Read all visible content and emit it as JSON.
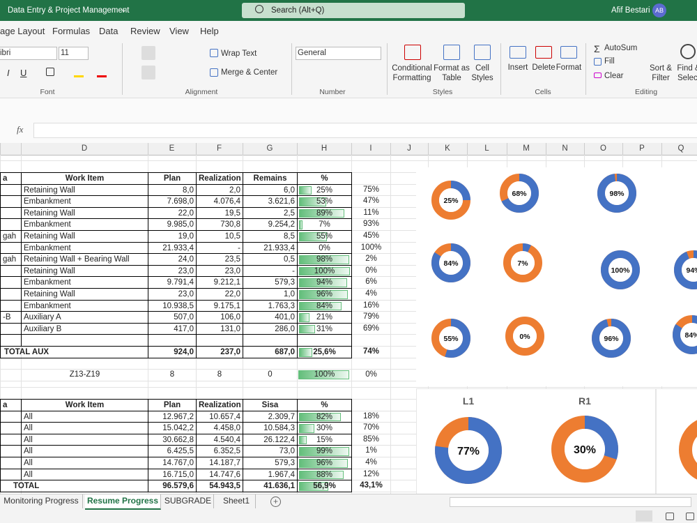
{
  "title_bar": {
    "doc_title": "Data Entry & Project Management",
    "search": "Search (Alt+Q)",
    "user": "Afif Bestari",
    "initials": "AB"
  },
  "menu_tabs": [
    "age Layout",
    "Formulas",
    "Data",
    "Review",
    "View",
    "Help"
  ],
  "ribbon": {
    "font_name": "ibri",
    "font_size": "11",
    "italic": "I",
    "underline": "U",
    "wrap_text": "Wrap Text",
    "merge_center": "Merge & Center",
    "number_format": "General",
    "conditional_formatting": [
      "Conditional",
      "Formatting"
    ],
    "format_as_table": [
      "Format as",
      "Table"
    ],
    "cell_styles": [
      "Cell",
      "Styles"
    ],
    "insert": "Insert",
    "delete": "Delete",
    "format": "Format",
    "autosum": "AutoSum",
    "fill": "Fill",
    "clear": "Clear",
    "sort_filter": [
      "Sort &",
      "Filter"
    ],
    "find_select": [
      "Find &",
      "Select"
    ],
    "groups": [
      "Font",
      "Alignment",
      "Number",
      "Styles",
      "Cells",
      "Editing"
    ]
  },
  "formula_bar": {
    "fx": "fx"
  },
  "columns": [
    "D",
    "E",
    "F",
    "G",
    "H",
    "I",
    "J",
    "K",
    "L",
    "M",
    "N",
    "O",
    "P",
    "Q"
  ],
  "table1": {
    "header": [
      "a",
      "Work Item",
      "Plan",
      "Realization",
      "Remains",
      "%"
    ],
    "rows": [
      [
        null,
        "Retaining Wall",
        "8,0",
        "2,0",
        "6,0",
        {
          "value": 25,
          "label": "25%"
        },
        "75%"
      ],
      [
        null,
        "Embankment",
        "7.698,0",
        "4.076,4",
        "3.621,6",
        {
          "value": 53,
          "label": "53%"
        },
        "47%"
      ],
      [
        null,
        "Retaining Wall",
        "22,0",
        "19,5",
        "2,5",
        {
          "value": 89,
          "label": "89%"
        },
        "11%"
      ],
      [
        null,
        "Embankment",
        "9.985,0",
        "730,8",
        "9.254,2",
        {
          "value": 7,
          "label": "7%"
        },
        "93%"
      ],
      [
        "gah",
        "Retaining Wall",
        "19,0",
        "10,5",
        "8,5",
        {
          "value": 55,
          "label": "55%"
        },
        "45%"
      ],
      [
        null,
        "Embankment",
        "21.933,4",
        "-",
        "21.933,4",
        {
          "value": 0,
          "label": "0%"
        },
        "100%"
      ],
      [
        "gah",
        "Retaining Wall + Bearing Wall",
        "24,0",
        "23,5",
        "0,5",
        {
          "value": 98,
          "label": "98%"
        },
        "2%"
      ],
      [
        null,
        "Retaining Wall",
        "23,0",
        "23,0",
        "-",
        {
          "value": 100,
          "label": "100%"
        },
        "0%"
      ],
      [
        null,
        "Embankment",
        "9.791,4",
        "9.212,1",
        "579,3",
        {
          "value": 94,
          "label": "94%"
        },
        "6%"
      ],
      [
        null,
        "Retaining Wall",
        "23,0",
        "22,0",
        "1,0",
        {
          "value": 96,
          "label": "96%"
        },
        "4%"
      ],
      [
        null,
        "Embankment",
        "10.938,5",
        "9.175,1",
        "1.763,3",
        {
          "value": 84,
          "label": "84%"
        },
        "16%"
      ],
      [
        "-B",
        "Auxiliary A",
        "507,0",
        "106,0",
        "401,0",
        {
          "value": 21,
          "label": "21%"
        },
        "79%"
      ],
      [
        null,
        "Auxiliary B",
        "417,0",
        "131,0",
        "286,0",
        {
          "value": 31,
          "label": "31%"
        },
        "69%"
      ]
    ],
    "total": [
      "TOTAL AUX",
      "924,0",
      "237,0",
      "687,0",
      {
        "value": 25.6,
        "label": "25,6%"
      },
      "74%"
    ]
  },
  "z_row": [
    "Z13-Z19",
    "8",
    "8",
    "0",
    {
      "value": 100,
      "label": "100%"
    },
    "0%"
  ],
  "table2": {
    "header": [
      "a",
      "Work Item",
      "Plan",
      "Realization",
      "Sisa",
      "%"
    ],
    "rows": [
      [
        null,
        "All",
        "12.967,2",
        "10.657,4",
        "2.309,7",
        {
          "value": 82,
          "label": "82%"
        },
        "18%"
      ],
      [
        null,
        "All",
        "15.042,2",
        "4.458,0",
        "10.584,3",
        {
          "value": 30,
          "label": "30%"
        },
        "70%"
      ],
      [
        null,
        "All",
        "30.662,8",
        "4.540,4",
        "26.122,4",
        {
          "value": 15,
          "label": "15%"
        },
        "85%"
      ],
      [
        null,
        "All",
        "6.425,5",
        "6.352,5",
        "73,0",
        {
          "value": 99,
          "label": "99%"
        },
        "1%"
      ],
      [
        null,
        "All",
        "14.767,0",
        "14.187,7",
        "579,3",
        {
          "value": 96,
          "label": "96%"
        },
        "4%"
      ],
      [
        null,
        "All",
        "16.715,0",
        "14.747,6",
        "1.967,4",
        {
          "value": 88,
          "label": "88%"
        },
        "12%"
      ]
    ],
    "total": [
      "TOTAL",
      "96.579,6",
      "54.943,5",
      "41.636,1",
      {
        "value": 56.9,
        "label": "56,9%"
      },
      "43,1%"
    ]
  },
  "donuts": [
    {
      "label": "25%",
      "value": 25
    },
    {
      "label": "68%",
      "value": 68
    },
    {
      "label": "98%",
      "value": 98
    },
    {
      "label": "84%",
      "value": 84
    },
    {
      "label": "7%",
      "value": 7
    },
    {
      "label": "100%",
      "value": 100
    },
    {
      "label": "94%",
      "value": 94
    },
    {
      "label": "55%",
      "value": 55
    },
    {
      "label": "0%",
      "value": 0
    },
    {
      "label": "96%",
      "value": 96
    },
    {
      "label": "84%",
      "value": 84
    }
  ],
  "big_donuts": [
    {
      "title": "L1",
      "label": "77%",
      "value": 77
    },
    {
      "title": "R1",
      "label": "30%",
      "value": 30
    }
  ],
  "sheet_tabs": [
    "Monitoring Progress",
    "Resume Progress",
    "SUBGRADE",
    "Sheet1"
  ]
}
